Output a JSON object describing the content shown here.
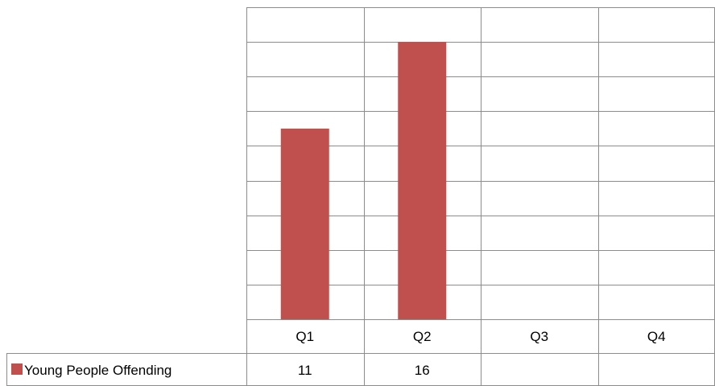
{
  "chart_data": {
    "type": "bar",
    "title": "",
    "xlabel": "",
    "ylabel": "",
    "categories": [
      "Q1",
      "Q2",
      "Q3",
      "Q4"
    ],
    "series": [
      {
        "name": "Young People Offending",
        "values": [
          11,
          16,
          null,
          null
        ],
        "color": "#c0504d"
      }
    ],
    "ylim": [
      0,
      18
    ],
    "y_axis_labels_shown": false,
    "grid": true,
    "legend": "data-table-left",
    "data_table": {
      "row_label": "Young People Offending",
      "cells": [
        "11",
        "16",
        "",
        ""
      ]
    }
  }
}
